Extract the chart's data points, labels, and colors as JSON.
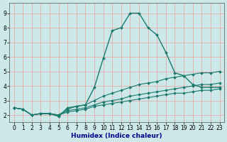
{
  "xlabel": "Humidex (Indice chaleur)",
  "xlim": [
    -0.5,
    23.5
  ],
  "ylim": [
    1.5,
    9.7
  ],
  "xticks": [
    0,
    1,
    2,
    3,
    4,
    5,
    6,
    7,
    8,
    9,
    10,
    11,
    12,
    13,
    14,
    15,
    16,
    17,
    18,
    19,
    20,
    21,
    22,
    23
  ],
  "yticks": [
    2,
    3,
    4,
    5,
    6,
    7,
    8,
    9
  ],
  "bg_color": "#cce8e8",
  "grid_color": "#e8aaaa",
  "line_color": "#1a7a6e",
  "line1_x": [
    0,
    1,
    2,
    3,
    4,
    5,
    6,
    7,
    8,
    9,
    10,
    11,
    12,
    13,
    14,
    15,
    16,
    17,
    18,
    19,
    20,
    21,
    22,
    23
  ],
  "line1_y": [
    2.5,
    2.4,
    2.0,
    2.1,
    2.1,
    1.9,
    2.5,
    2.6,
    2.7,
    3.9,
    5.9,
    7.8,
    8.0,
    9.0,
    9.0,
    8.0,
    7.5,
    6.3,
    4.9,
    4.7,
    4.1,
    3.9,
    3.9,
    3.9
  ],
  "line2_x": [
    0,
    1,
    2,
    3,
    4,
    5,
    6,
    7,
    8,
    9,
    10,
    11,
    12,
    13,
    14,
    15,
    16,
    17,
    18,
    19,
    20,
    21,
    22,
    23
  ],
  "line2_y": [
    2.5,
    2.4,
    2.0,
    2.1,
    2.1,
    2.0,
    2.4,
    2.6,
    2.7,
    3.0,
    3.3,
    3.5,
    3.7,
    3.9,
    4.1,
    4.2,
    4.3,
    4.5,
    4.6,
    4.7,
    4.8,
    4.9,
    4.9,
    5.0
  ],
  "line3_x": [
    0,
    1,
    2,
    3,
    4,
    5,
    6,
    7,
    8,
    9,
    10,
    11,
    12,
    13,
    14,
    15,
    16,
    17,
    18,
    19,
    20,
    21,
    22,
    23
  ],
  "line3_y": [
    2.5,
    2.4,
    2.0,
    2.1,
    2.1,
    2.0,
    2.3,
    2.4,
    2.5,
    2.7,
    2.9,
    3.0,
    3.1,
    3.3,
    3.4,
    3.5,
    3.6,
    3.7,
    3.8,
    3.9,
    4.0,
    4.1,
    4.1,
    4.2
  ],
  "line4_x": [
    0,
    1,
    2,
    3,
    4,
    5,
    6,
    7,
    8,
    9,
    10,
    11,
    12,
    13,
    14,
    15,
    16,
    17,
    18,
    19,
    20,
    21,
    22,
    23
  ],
  "line4_y": [
    2.5,
    2.4,
    2.0,
    2.1,
    2.1,
    2.0,
    2.2,
    2.3,
    2.4,
    2.6,
    2.7,
    2.8,
    2.9,
    3.0,
    3.1,
    3.2,
    3.3,
    3.4,
    3.5,
    3.5,
    3.6,
    3.7,
    3.7,
    3.8
  ],
  "tick_fontsize": 5.5,
  "xlabel_fontsize": 6.5,
  "xlabel_color": "#00008b",
  "xlabel_fontweight": "bold"
}
